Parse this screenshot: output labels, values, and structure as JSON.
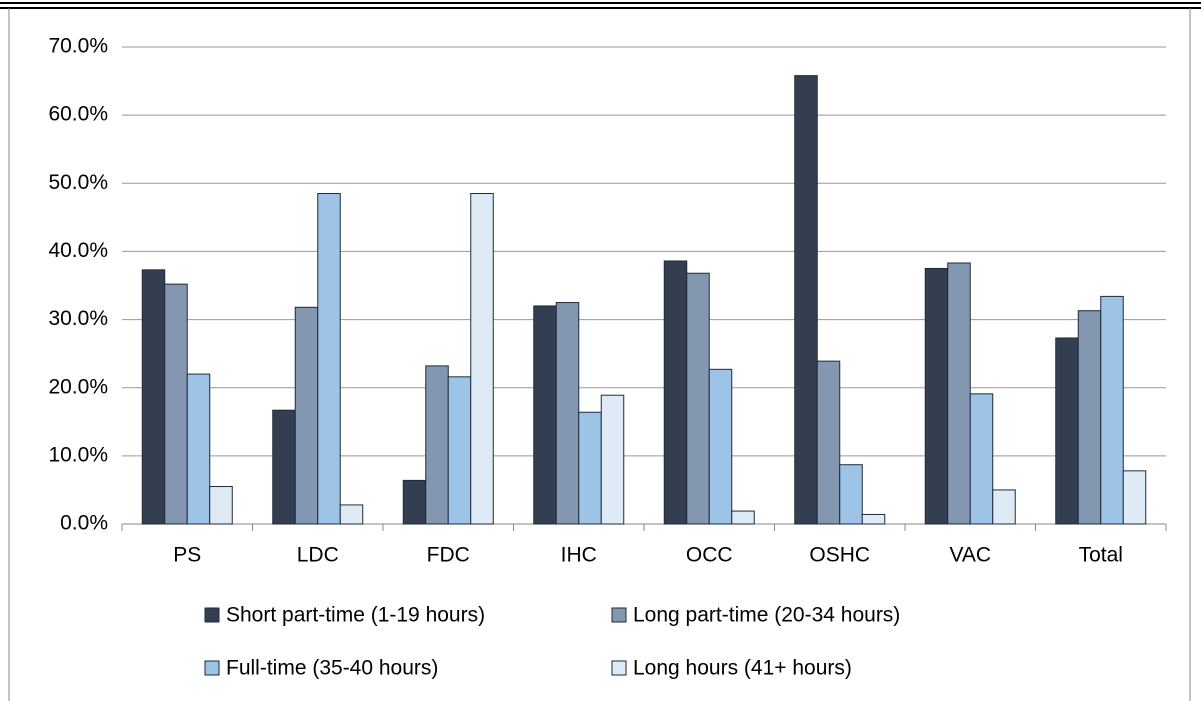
{
  "chart_data": {
    "type": "bar",
    "categories": [
      "PS",
      "LDC",
      "FDC",
      "IHC",
      "OCC",
      "OSHC",
      "VAC",
      "Total"
    ],
    "series": [
      {
        "name": "Short part-time (1-19 hours)",
        "color": "#333f50",
        "values": [
          37.3,
          16.7,
          6.4,
          32.0,
          38.6,
          65.8,
          37.5,
          27.3
        ]
      },
      {
        "name": "Long part-time (20-34 hours)",
        "color": "#8497b0",
        "values": [
          35.2,
          31.8,
          23.2,
          32.5,
          36.8,
          23.9,
          38.3,
          31.3
        ]
      },
      {
        "name": "Full-time (35-40 hours)",
        "color": "#9dc3e6",
        "values": [
          22.0,
          48.5,
          21.6,
          16.4,
          22.7,
          8.7,
          19.1,
          33.4
        ]
      },
      {
        "name": "Long hours (41+ hours)",
        "color": "#deebf7",
        "values": [
          5.5,
          2.8,
          48.5,
          18.9,
          1.9,
          1.4,
          5.0,
          7.8
        ]
      }
    ],
    "ylim": [
      0,
      70
    ],
    "yticks": [
      {
        "value": 0,
        "label": "0.0%"
      },
      {
        "value": 10,
        "label": "10.0%"
      },
      {
        "value": 20,
        "label": "20.0%"
      },
      {
        "value": 30,
        "label": "30.0%"
      },
      {
        "value": 40,
        "label": "40.0%"
      },
      {
        "value": 50,
        "label": "50.0%"
      },
      {
        "value": 60,
        "label": "60.0%"
      },
      {
        "value": 70,
        "label": "70.0%"
      }
    ],
    "grid": true
  }
}
